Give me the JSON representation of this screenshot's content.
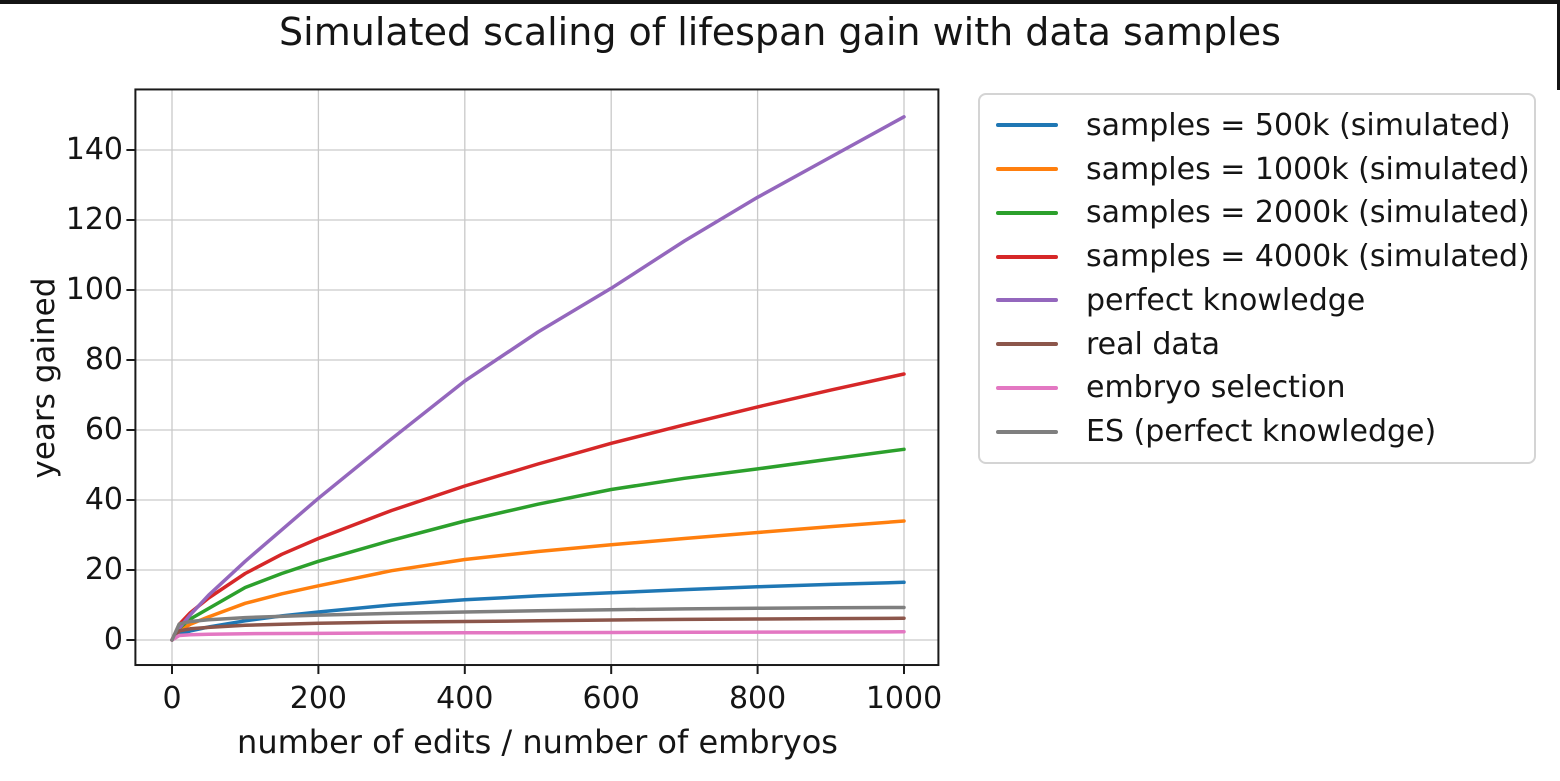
{
  "figure": {
    "background": "#ffffff",
    "edge_color": "#141414",
    "text_color": "#151515",
    "grid_color": "#c9c9c9",
    "frame_color": "#1a1a1a"
  },
  "chart_data": {
    "type": "line",
    "title": "Simulated scaling of lifespan gain with data samples",
    "xlabel": "number of edits / number of embryos",
    "ylabel": "years gained",
    "xlim": [
      -50,
      1047
    ],
    "ylim": [
      -7.15,
      157.3
    ],
    "xticks": [
      0,
      200,
      400,
      600,
      800,
      1000
    ],
    "yticks": [
      0,
      20,
      40,
      60,
      80,
      100,
      120,
      140
    ],
    "grid": true,
    "legend_position": "outside upper right",
    "series": [
      {
        "name": "samples = 500k (simulated)",
        "color": "#1f77b4",
        "points": [
          [
            0,
            0
          ],
          [
            10,
            1.6
          ],
          [
            25,
            2.6
          ],
          [
            50,
            3.7
          ],
          [
            100,
            5.5
          ],
          [
            150,
            6.9
          ],
          [
            200,
            8
          ],
          [
            300,
            10
          ],
          [
            400,
            11.5
          ],
          [
            500,
            12.6
          ],
          [
            600,
            13.5
          ],
          [
            700,
            14.4
          ],
          [
            800,
            15.2
          ],
          [
            900,
            15.9
          ],
          [
            1000,
            16.5
          ]
        ]
      },
      {
        "name": "samples = 1000k (simulated)",
        "color": "#ff7f0e",
        "points": [
          [
            0,
            0
          ],
          [
            10,
            2.7
          ],
          [
            25,
            4.5
          ],
          [
            50,
            6.6
          ],
          [
            100,
            10.5
          ],
          [
            150,
            13.2
          ],
          [
            200,
            15.5
          ],
          [
            300,
            19.8
          ],
          [
            400,
            23
          ],
          [
            500,
            25.3
          ],
          [
            600,
            27.2
          ],
          [
            700,
            29
          ],
          [
            800,
            30.7
          ],
          [
            900,
            32.4
          ],
          [
            1000,
            34
          ]
        ]
      },
      {
        "name": "samples = 2000k (simulated)",
        "color": "#2ca02c",
        "points": [
          [
            0,
            0
          ],
          [
            10,
            3.4
          ],
          [
            25,
            6
          ],
          [
            50,
            9
          ],
          [
            100,
            15
          ],
          [
            150,
            19
          ],
          [
            200,
            22.5
          ],
          [
            300,
            28.5
          ],
          [
            400,
            34
          ],
          [
            500,
            38.8
          ],
          [
            600,
            43
          ],
          [
            700,
            46.2
          ],
          [
            800,
            48.9
          ],
          [
            900,
            51.7
          ],
          [
            1000,
            54.5
          ]
        ]
      },
      {
        "name": "samples = 4000k (simulated)",
        "color": "#d62728",
        "points": [
          [
            0,
            0
          ],
          [
            10,
            4.5
          ],
          [
            25,
            7.8
          ],
          [
            50,
            12
          ],
          [
            100,
            19
          ],
          [
            150,
            24.5
          ],
          [
            200,
            29
          ],
          [
            300,
            37
          ],
          [
            400,
            44
          ],
          [
            500,
            50.3
          ],
          [
            600,
            56.2
          ],
          [
            700,
            61.5
          ],
          [
            800,
            66.6
          ],
          [
            900,
            71.4
          ],
          [
            1000,
            76
          ]
        ]
      },
      {
        "name": "perfect knowledge",
        "color": "#9467bd",
        "points": [
          [
            0,
            0
          ],
          [
            10,
            3.4
          ],
          [
            25,
            7.2
          ],
          [
            50,
            12.8
          ],
          [
            100,
            22.5
          ],
          [
            150,
            31.5
          ],
          [
            200,
            40.5
          ],
          [
            300,
            57.5
          ],
          [
            400,
            74
          ],
          [
            500,
            88
          ],
          [
            600,
            100.5
          ],
          [
            700,
            114
          ],
          [
            800,
            126.5
          ],
          [
            900,
            138
          ],
          [
            1000,
            149.5
          ]
        ]
      },
      {
        "name": "real data",
        "color": "#8c564b",
        "points": [
          [
            0,
            0
          ],
          [
            10,
            2.6
          ],
          [
            25,
            3.2
          ],
          [
            50,
            3.6
          ],
          [
            100,
            4.2
          ],
          [
            200,
            4.8
          ],
          [
            300,
            5.1
          ],
          [
            400,
            5.3
          ],
          [
            500,
            5.5
          ],
          [
            600,
            5.7
          ],
          [
            700,
            5.9
          ],
          [
            800,
            6.0
          ],
          [
            900,
            6.1
          ],
          [
            1000,
            6.2
          ]
        ]
      },
      {
        "name": "embryo selection",
        "color": "#e377c2",
        "points": [
          [
            0,
            0
          ],
          [
            10,
            1.3
          ],
          [
            25,
            1.5
          ],
          [
            50,
            1.65
          ],
          [
            100,
            1.8
          ],
          [
            200,
            1.9
          ],
          [
            300,
            2.0
          ],
          [
            400,
            2.05
          ],
          [
            600,
            2.15
          ],
          [
            800,
            2.25
          ],
          [
            1000,
            2.35
          ]
        ]
      },
      {
        "name": "ES (perfect knowledge)",
        "color": "#7f7f7f",
        "points": [
          [
            0,
            0
          ],
          [
            10,
            4.6
          ],
          [
            25,
            5.3
          ],
          [
            50,
            5.8
          ],
          [
            100,
            6.4
          ],
          [
            200,
            7.1
          ],
          [
            300,
            7.6
          ],
          [
            400,
            8
          ],
          [
            500,
            8.35
          ],
          [
            600,
            8.65
          ],
          [
            700,
            8.9
          ],
          [
            800,
            9.05
          ],
          [
            900,
            9.2
          ],
          [
            1000,
            9.3
          ]
        ]
      }
    ]
  }
}
